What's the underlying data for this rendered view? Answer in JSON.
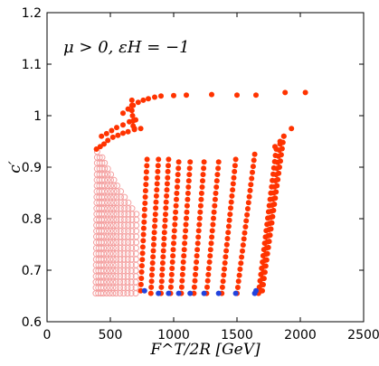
{
  "chart_data": {
    "type": "scatter",
    "title": "",
    "annotation": "μ > 0, εH = −1",
    "xlabel": "F^T/2R [GeV]",
    "ylabel": "c′",
    "xlim": [
      0,
      2500
    ],
    "ylim": [
      0.6,
      1.2
    ],
    "xticks": [
      "0",
      "500",
      "1000",
      "1500",
      "2000",
      "2500"
    ],
    "yticks": [
      "0.6",
      "0.7",
      "0.8",
      "0.9",
      "1",
      "1.1",
      "1.2"
    ],
    "grid": false,
    "legend": "none",
    "colors": {
      "main": "#ff3300",
      "light": "#f4a0a0",
      "low": "#2244dd"
    },
    "series": [
      {
        "marker": "filled-red",
        "note": "diagonal bands of points; each band runs from its lowest point to its highest point",
        "bands": [
          {
            "x": [
              740,
              790
            ],
            "y": [
              0.66,
              0.915
            ]
          },
          {
            "x": [
              820,
              880
            ],
            "y": [
              0.655,
              0.915
            ]
          },
          {
            "x": [
              900,
              960
            ],
            "y": [
              0.655,
              0.915
            ]
          },
          {
            "x": [
              975,
              1040
            ],
            "y": [
              0.655,
              0.91
            ]
          },
          {
            "x": [
              1060,
              1130
            ],
            "y": [
              0.655,
              0.91
            ]
          },
          {
            "x": [
              1160,
              1240
            ],
            "y": [
              0.655,
              0.91
            ]
          },
          {
            "x": [
              1260,
              1355
            ],
            "y": [
              0.655,
              0.91
            ]
          },
          {
            "x": [
              1380,
              1490
            ],
            "y": [
              0.655,
              0.915
            ]
          },
          {
            "x": [
              1500,
              1640
            ],
            "y": [
              0.655,
              0.925
            ]
          },
          {
            "x": [
              1670,
              1810
            ],
            "y": [
              0.655,
              0.935
            ]
          },
          {
            "x": [
              1690,
              1840
            ],
            "y": [
              0.66,
              0.945
            ]
          },
          {
            "x": [
              1700,
              1870
            ],
            "y": [
              0.66,
              0.96
            ]
          }
        ]
      },
      {
        "marker": "filled-red",
        "note": "upper arcs",
        "points": [
          [
            390,
            0.935
          ],
          [
            420,
            0.94
          ],
          [
            450,
            0.945
          ],
          [
            480,
            0.952
          ],
          [
            520,
            0.958
          ],
          [
            560,
            0.962
          ],
          [
            600,
            0.966
          ],
          [
            640,
            0.969
          ],
          [
            690,
            0.973
          ],
          [
            740,
            0.975
          ],
          [
            430,
            0.96
          ],
          [
            470,
            0.965
          ],
          [
            510,
            0.971
          ],
          [
            550,
            0.977
          ],
          [
            600,
            0.982
          ],
          [
            650,
            0.988
          ],
          [
            700,
            0.992
          ],
          [
            600,
            1.005
          ],
          [
            640,
            1.013
          ],
          [
            680,
            1.02
          ],
          [
            720,
            1.026
          ],
          [
            760,
            1.03
          ],
          [
            800,
            1.033
          ],
          [
            850,
            1.036
          ],
          [
            900,
            1.038
          ],
          [
            1000,
            1.039
          ],
          [
            1100,
            1.04
          ],
          [
            1300,
            1.041
          ],
          [
            1500,
            1.04
          ],
          [
            1650,
            1.04
          ],
          [
            1880,
            1.045
          ],
          [
            2040,
            1.045
          ]
        ]
      },
      {
        "marker": "filled-red",
        "note": "column of points at x ≈ 660 – 700",
        "points": [
          [
            670,
            1.03
          ],
          [
            670,
            1.02
          ],
          [
            670,
            1.01
          ],
          [
            675,
            1.0
          ],
          [
            680,
            0.99
          ],
          [
            680,
            0.98
          ],
          [
            690,
            0.975
          ]
        ]
      },
      {
        "marker": "filled-red",
        "note": "top points of the upper bands",
        "points": [
          [
            1800,
            0.94
          ],
          [
            1840,
            0.95
          ],
          [
            1870,
            0.96
          ],
          [
            1930,
            0.975
          ]
        ]
      },
      {
        "marker": "open-pink",
        "note": "low-x region, x ≈ 380–700",
        "x_range": [
          380,
          720
        ],
        "y_range": [
          0.655,
          0.94
        ]
      },
      {
        "marker": "filled-blue",
        "note": "lowest point of each band, y ≈ 0.65–0.66",
        "points": [
          [
            770,
            0.66
          ],
          [
            880,
            0.655
          ],
          [
            960,
            0.655
          ],
          [
            1040,
            0.655
          ],
          [
            1130,
            0.655
          ],
          [
            1240,
            0.655
          ],
          [
            1355,
            0.655
          ],
          [
            1490,
            0.655
          ],
          [
            1640,
            0.655
          ],
          [
            1650,
            0.66
          ]
        ]
      }
    ]
  }
}
